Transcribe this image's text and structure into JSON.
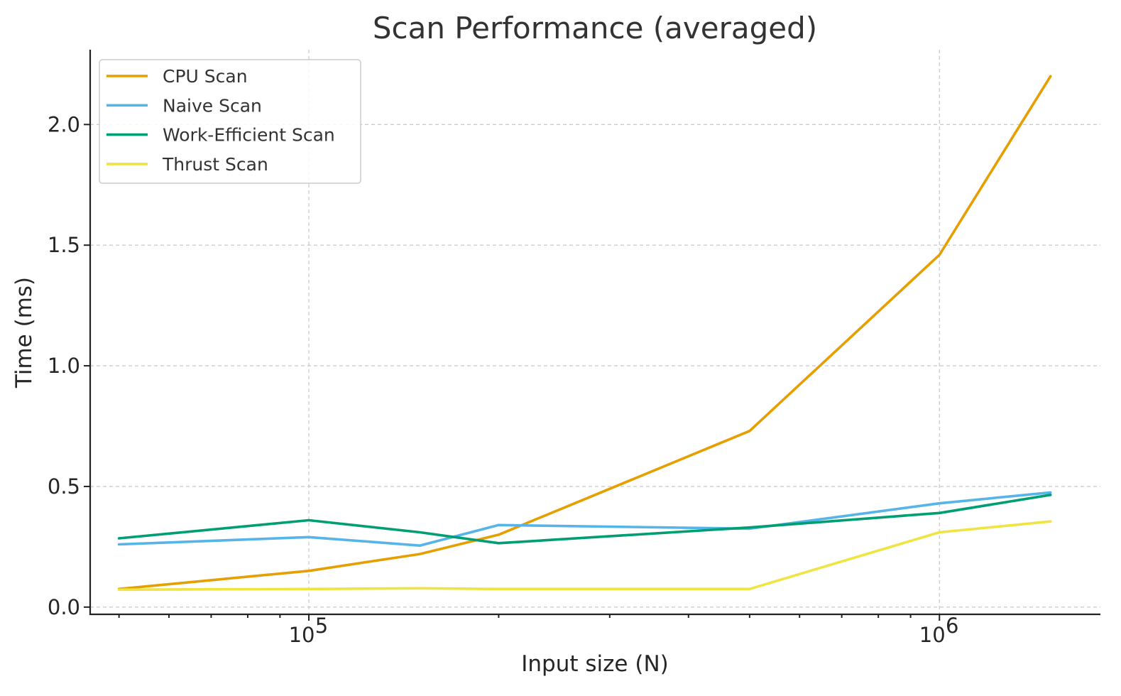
{
  "chart_data": {
    "type": "line",
    "title": "Scan Performance (averaged)",
    "xlabel": "Input size (N)",
    "ylabel": "Time (ms)",
    "xscale": "log",
    "xlim": [
      45000,
      1800000
    ],
    "ylim": [
      -0.03,
      2.31
    ],
    "x": [
      50000,
      100000,
      150000,
      200000,
      500000,
      1000000,
      1500000
    ],
    "x_ticks": [
      {
        "value": 100000,
        "base": "10",
        "exp": "5"
      },
      {
        "value": 1000000,
        "base": "10",
        "exp": "6"
      }
    ],
    "y_ticks": [
      {
        "value": 0.0,
        "label": "0.0"
      },
      {
        "value": 0.5,
        "label": "0.5"
      },
      {
        "value": 1.0,
        "label": "1.0"
      },
      {
        "value": 1.5,
        "label": "1.5"
      },
      {
        "value": 2.0,
        "label": "2.0"
      }
    ],
    "grid": true,
    "legend_position": "top-left",
    "series": [
      {
        "name": "CPU Scan",
        "color": "#E69F00",
        "values": [
          0.075,
          0.15,
          0.22,
          0.3,
          0.73,
          1.46,
          2.2
        ]
      },
      {
        "name": "Naive Scan",
        "color": "#56B4E9",
        "values": [
          0.26,
          0.29,
          0.255,
          0.34,
          0.325,
          0.43,
          0.475
        ]
      },
      {
        "name": "Work-Efficient Scan",
        "color": "#009E73",
        "values": [
          0.285,
          0.36,
          0.31,
          0.265,
          0.33,
          0.39,
          0.465
        ]
      },
      {
        "name": "Thrust Scan",
        "color": "#F0E442",
        "values": [
          0.072,
          0.075,
          0.078,
          0.075,
          0.075,
          0.31,
          0.355
        ]
      }
    ]
  }
}
